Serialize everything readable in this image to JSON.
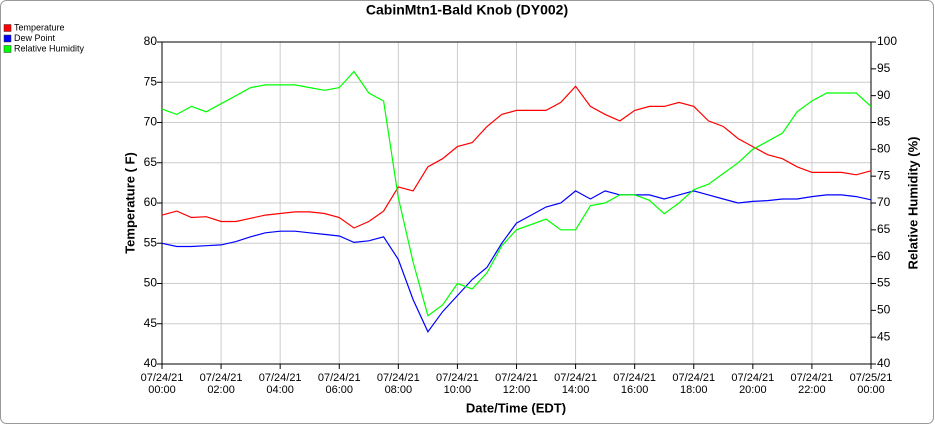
{
  "chart_data": {
    "type": "line",
    "title": "CabinMtn1-Bald Knob (DY002)",
    "x_label": "Date/Time (EDT)",
    "y_label": "Temperature ( F)",
    "y2_label": "Relative Humidity (%)",
    "x": [
      "2021-07-24T00:00",
      "2021-07-24T00:30",
      "2021-07-24T01:00",
      "2021-07-24T01:30",
      "2021-07-24T02:00",
      "2021-07-24T02:30",
      "2021-07-24T03:00",
      "2021-07-24T03:30",
      "2021-07-24T04:00",
      "2021-07-24T04:30",
      "2021-07-24T05:00",
      "2021-07-24T05:30",
      "2021-07-24T06:00",
      "2021-07-24T06:30",
      "2021-07-24T07:00",
      "2021-07-24T07:30",
      "2021-07-24T08:00",
      "2021-07-24T08:30",
      "2021-07-24T09:00",
      "2021-07-24T09:30",
      "2021-07-24T10:00",
      "2021-07-24T10:30",
      "2021-07-24T11:00",
      "2021-07-24T11:30",
      "2021-07-24T12:00",
      "2021-07-24T12:30",
      "2021-07-24T13:00",
      "2021-07-24T13:30",
      "2021-07-24T14:00",
      "2021-07-24T14:30",
      "2021-07-24T15:00",
      "2021-07-24T15:30",
      "2021-07-24T16:00",
      "2021-07-24T16:30",
      "2021-07-24T17:00",
      "2021-07-24T17:30",
      "2021-07-24T18:00",
      "2021-07-24T18:30",
      "2021-07-24T19:00",
      "2021-07-24T19:30",
      "2021-07-24T20:00",
      "2021-07-24T20:30",
      "2021-07-24T21:00",
      "2021-07-24T21:30",
      "2021-07-24T22:00",
      "2021-07-24T22:30",
      "2021-07-24T23:00",
      "2021-07-24T23:30",
      "2021-07-25T00:00"
    ],
    "series": [
      {
        "name": "Temperature",
        "color": "#ff0000",
        "values": [
          58.5,
          59,
          58.2,
          58.3,
          57.7,
          57.7,
          58.1,
          58.5,
          58.7,
          58.9,
          58.9,
          58.7,
          58.2,
          56.9,
          57.7,
          59,
          62,
          61.5,
          64.5,
          65.5,
          67,
          67.5,
          69.5,
          71,
          71.5,
          71.5,
          71.5,
          72.5,
          74.5,
          72,
          71,
          70.2,
          71.5,
          72,
          72,
          72.5,
          72,
          70.2,
          69.5,
          68,
          67,
          66,
          65.5,
          64.5,
          63.8,
          63.8,
          63.8,
          63.5,
          64
        ]
      },
      {
        "name": "Dew Point",
        "color": "#0000ff",
        "values": [
          55,
          54.6,
          54.6,
          54.7,
          54.8,
          55.2,
          55.8,
          56.3,
          56.5,
          56.5,
          56.3,
          56.1,
          55.9,
          55.1,
          55.3,
          55.8,
          53,
          48,
          44,
          46.5,
          48.5,
          50.5,
          52,
          55,
          57.5,
          58.5,
          59.5,
          60,
          61.5,
          60.5,
          61.5,
          61,
          61,
          61,
          60.5,
          61,
          61.5,
          61,
          60.5,
          60,
          60.2,
          60.3,
          60.5,
          60.5,
          60.8,
          61,
          61,
          60.8,
          60.4
        ]
      },
      {
        "name": "Relative Humidity",
        "color": "#00ff00",
        "axis": "y2",
        "values": [
          87.5,
          86.5,
          88,
          87,
          88.5,
          90,
          91.5,
          92,
          92,
          92,
          91.5,
          91,
          91.5,
          94.5,
          90.5,
          89,
          71,
          59,
          49,
          51,
          55,
          54,
          57,
          62,
          65,
          66,
          67,
          65,
          65,
          69.5,
          70,
          71.5,
          71.5,
          70.5,
          68,
          70,
          72.5,
          73.5,
          75.5,
          77.5,
          80,
          81.5,
          83,
          87,
          89,
          90.5,
          90.5,
          90.5,
          88
        ]
      }
    ],
    "xlim": [
      "2021-07-24T00:00",
      "2021-07-25T00:00"
    ],
    "xticks": [
      {
        "value": "2021-07-24T00:00",
        "label": "07/24/21 00:00"
      },
      {
        "value": "2021-07-24T02:00",
        "label": "07/24/21 02:00"
      },
      {
        "value": "2021-07-24T04:00",
        "label": "07/24/21 04:00"
      },
      {
        "value": "2021-07-24T06:00",
        "label": "07/24/21 06:00"
      },
      {
        "value": "2021-07-24T08:00",
        "label": "07/24/21 08:00"
      },
      {
        "value": "2021-07-24T10:00",
        "label": "07/24/21 10:00"
      },
      {
        "value": "2021-07-24T12:00",
        "label": "07/24/21 12:00"
      },
      {
        "value": "2021-07-24T14:00",
        "label": "07/24/21 14:00"
      },
      {
        "value": "2021-07-24T16:00",
        "label": "07/24/21 16:00"
      },
      {
        "value": "2021-07-24T18:00",
        "label": "07/24/21 18:00"
      },
      {
        "value": "2021-07-24T20:00",
        "label": "07/24/21 20:00"
      },
      {
        "value": "2021-07-24T22:00",
        "label": "07/24/21 22:00"
      },
      {
        "value": "2021-07-25T00:00",
        "label": "07/25/21 00:00"
      }
    ],
    "ylim": [
      40,
      80
    ],
    "yticks": [
      40,
      45,
      50,
      55,
      60,
      65,
      70,
      75,
      80
    ],
    "y2lim": [
      40,
      100
    ],
    "y2ticks": [
      40,
      45,
      50,
      55,
      60,
      65,
      70,
      75,
      80,
      85,
      90,
      95,
      100
    ],
    "grid": true,
    "legend": "top-left"
  }
}
